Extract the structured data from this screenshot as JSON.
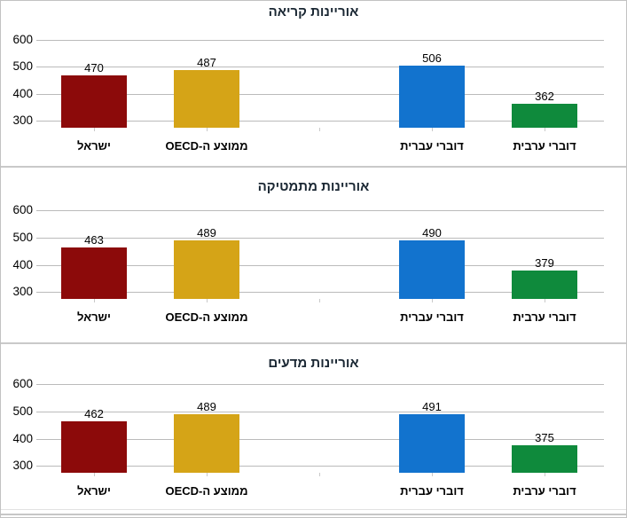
{
  "palette": {
    "israel_red": "#8c0a0a",
    "oecd_gold": "#d5a417",
    "hebrew_blue": "#1273ce",
    "arabic_green": "#0f8a3c",
    "gridline": "#bbbbbb",
    "axis_tick": "#c9c9c9",
    "title_text": "#1a2733",
    "label_text": "#000000",
    "panel_divider": "#c9c9c9",
    "frame_border": "#c2c2c2"
  },
  "chart_data": [
    {
      "type": "bar",
      "title": "אוריינות קריאה",
      "categories": [
        "ישראל",
        "ממוצע ה-OECD",
        "",
        "דוברי עברית",
        "דוברי ערבית"
      ],
      "values": [
        470,
        487,
        null,
        506,
        362
      ],
      "bar_colors": [
        "#8c0a0a",
        "#d5a417",
        null,
        "#1273ce",
        "#0f8a3c"
      ],
      "yticks": [
        300,
        400,
        500,
        600
      ],
      "ylim": [
        275,
        620
      ],
      "grid": true,
      "legend": false,
      "value_labels": true
    },
    {
      "type": "bar",
      "title": "אוריינות מתמטיקה",
      "categories": [
        "ישראל",
        "ממוצע ה-OECD",
        "",
        "דוברי עברית",
        "דוברי ערבית"
      ],
      "values": [
        463,
        489,
        null,
        490,
        379
      ],
      "bar_colors": [
        "#8c0a0a",
        "#d5a417",
        null,
        "#1273ce",
        "#0f8a3c"
      ],
      "yticks": [
        300,
        400,
        500,
        600
      ],
      "ylim": [
        275,
        620
      ],
      "grid": true,
      "legend": false,
      "value_labels": true
    },
    {
      "type": "bar",
      "title": "אוריינות מדעים",
      "categories": [
        "ישראל",
        "ממוצע ה-OECD",
        "",
        "דוברי עברית",
        "דוברי ערבית"
      ],
      "values": [
        462,
        489,
        null,
        491,
        375
      ],
      "bar_colors": [
        "#8c0a0a",
        "#d5a417",
        null,
        "#1273ce",
        "#0f8a3c"
      ],
      "yticks": [
        300,
        400,
        500,
        600
      ],
      "ylim": [
        275,
        620
      ],
      "grid": true,
      "legend": false,
      "value_labels": true
    }
  ]
}
